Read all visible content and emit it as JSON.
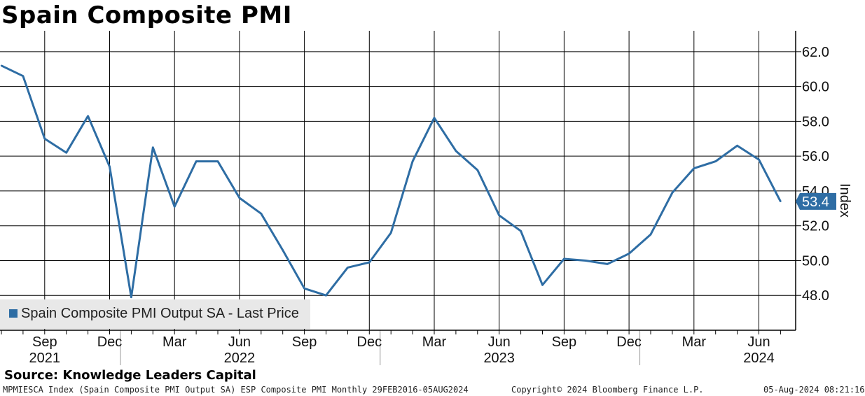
{
  "chart_data": {
    "type": "line",
    "title": "Spain Composite PMI",
    "ylabel": "Index",
    "ylim": [
      46.0,
      63.2
    ],
    "y_ticks": [
      48.0,
      50.0,
      52.0,
      54.0,
      56.0,
      58.0,
      60.0,
      62.0
    ],
    "y_tick_labels": [
      "48.0",
      "50.0",
      "52.0",
      "54.0",
      "56.0",
      "58.0",
      "60.0",
      "62.0"
    ],
    "grid": true,
    "y_axis_side": "right",
    "x_range": [
      "2021-07",
      "2024-08"
    ],
    "x_month_labels": [
      {
        "date": "2021-09",
        "label": "Sep"
      },
      {
        "date": "2021-12",
        "label": "Dec"
      },
      {
        "date": "2022-03",
        "label": "Mar"
      },
      {
        "date": "2022-06",
        "label": "Jun"
      },
      {
        "date": "2022-09",
        "label": "Sep"
      },
      {
        "date": "2022-12",
        "label": "Dec"
      },
      {
        "date": "2023-03",
        "label": "Mar"
      },
      {
        "date": "2023-06",
        "label": "Jun"
      },
      {
        "date": "2023-09",
        "label": "Sep"
      },
      {
        "date": "2023-12",
        "label": "Dec"
      },
      {
        "date": "2024-03",
        "label": "Mar"
      },
      {
        "date": "2024-06",
        "label": "Jun"
      }
    ],
    "x_year_labels": [
      {
        "date": "2021-09",
        "label": "2021"
      },
      {
        "date": "2022-06",
        "label": "2022"
      },
      {
        "date": "2023-06",
        "label": "2023"
      },
      {
        "date": "2024-06",
        "label": "2024"
      }
    ],
    "series": [
      {
        "name": "Spain Composite PMI Output SA - Last Price",
        "color": "#2e6da4",
        "x": [
          "2021-07",
          "2021-08",
          "2021-09",
          "2021-10",
          "2021-11",
          "2021-12",
          "2022-01",
          "2022-02",
          "2022-03",
          "2022-04",
          "2022-05",
          "2022-06",
          "2022-07",
          "2022-08",
          "2022-09",
          "2022-10",
          "2022-11",
          "2022-12",
          "2023-01",
          "2023-02",
          "2023-03",
          "2023-04",
          "2023-05",
          "2023-06",
          "2023-07",
          "2023-08",
          "2023-09",
          "2023-10",
          "2023-11",
          "2023-12",
          "2024-01",
          "2024-02",
          "2024-03",
          "2024-04",
          "2024-05",
          "2024-06",
          "2024-07"
        ],
        "values": [
          61.2,
          60.6,
          57.0,
          56.2,
          58.3,
          55.4,
          47.9,
          56.5,
          53.1,
          55.7,
          55.7,
          53.6,
          52.7,
          50.6,
          48.4,
          48.0,
          49.6,
          49.9,
          51.6,
          55.7,
          58.2,
          56.3,
          55.2,
          52.6,
          51.7,
          48.6,
          50.1,
          50.0,
          49.8,
          50.4,
          51.5,
          53.9,
          55.3,
          55.7,
          56.6,
          55.8,
          53.4
        ]
      }
    ],
    "last_value_label": "53.4",
    "legend": "bottom-left"
  },
  "source": "Source: Knowledge Leaders Capital",
  "footer": {
    "left": "MPMIESCA Index (Spain Composite PMI Output SA) ESP Composite PMI  Monthly 29FEB2016-05AUG2024",
    "center": "Copyright© 2024 Bloomberg Finance L.P.",
    "right": "05-Aug-2024 08:21:16"
  }
}
